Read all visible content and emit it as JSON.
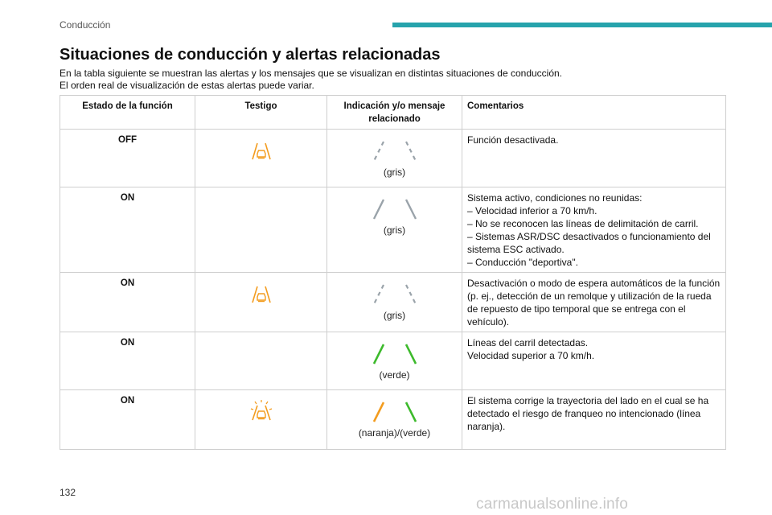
{
  "header": {
    "section": "Conducción"
  },
  "title": "Situaciones de conducción y alertas relacionadas",
  "intro": [
    "En la tabla siguiente se muestran las alertas y los mensajes que se visualizan en distintas situaciones de conducción.",
    "El orden real de visualización de estas alertas puede variar."
  ],
  "table": {
    "headers": {
      "state": "Estado de la función",
      "lamp": "Testigo",
      "indication": "Indicación y/o mensaje relacionado",
      "comments": "Comentarios"
    },
    "rows": [
      {
        "state": "OFF",
        "lamp_icon": "lane-warning-icon-orange",
        "indication_icon": "lane-lines-dashed-grey",
        "indication_caption": "(gris)",
        "comments": [
          "Función desactivada."
        ]
      },
      {
        "state": "ON",
        "lamp_icon": "none",
        "indication_icon": "lane-lines-solid-grey",
        "indication_caption": "(gris)",
        "comments": [
          "Sistema activo, condiciones no reunidas:",
          "– Velocidad inferior a 70 km/h.",
          "– No se reconocen las líneas de delimitación de carril.",
          "– Sistemas ASR/DSC desactivados o funcionamiento del sistema ESC activado.",
          "– Conducción \"deportiva\"."
        ]
      },
      {
        "state": "ON",
        "lamp_icon": "lane-warning-icon-orange",
        "indication_icon": "lane-lines-dashed-grey",
        "indication_caption": "(gris)",
        "comments": [
          "Desactivación o modo de espera automáticos de la función (p. ej., detección de un remolque y utilización de la rueda de repuesto de tipo temporal que se entrega con el vehículo)."
        ]
      },
      {
        "state": "ON",
        "lamp_icon": "none",
        "indication_icon": "lane-lines-solid-green",
        "indication_caption": "(verde)",
        "comments": [
          "Líneas del carril detectadas.",
          "Velocidad superior a 70 km/h."
        ]
      },
      {
        "state": "ON",
        "lamp_icon": "lane-warning-icon-orange-flashing",
        "indication_icon": "lane-lines-orange-green",
        "indication_caption": "(naranja)/(verde)",
        "comments": [
          "El sistema corrige la trayectoria del lado en el cual se ha detectado el riesgo de franqueo no intencionado (línea naranja)."
        ]
      }
    ]
  },
  "footer": {
    "page_number": "132",
    "watermark": "carmanualsonline.info"
  },
  "colors": {
    "accent": "#26a3ac",
    "orange": "#f39c1e",
    "green": "#3dba2c",
    "grey_line": "#9aa3aa"
  }
}
